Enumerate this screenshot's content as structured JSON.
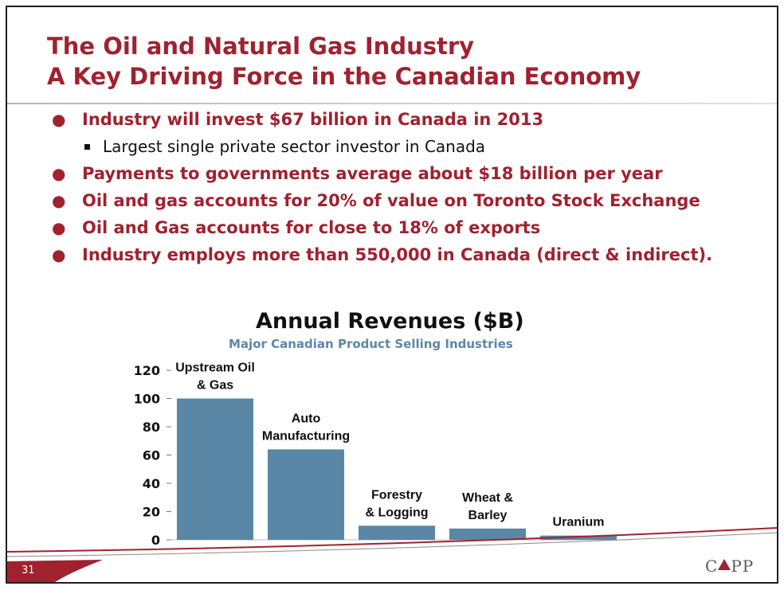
{
  "slide": {
    "title_line1": "The Oil and Natural Gas Industry",
    "title_line2": "A Key Driving Force in the Canadian Economy",
    "bullets": [
      {
        "level": 1,
        "text": "Industry will invest $67 billion in Canada in 2013"
      },
      {
        "level": 2,
        "text": "Largest single private sector investor in Canada"
      },
      {
        "level": 1,
        "text": "Payments to governments average about $18 billion per year"
      },
      {
        "level": 1,
        "text": "Oil and gas accounts for 20% of value on Toronto Stock Exchange"
      },
      {
        "level": 1,
        "text": "Oil and Gas accounts for close to 18% of exports"
      },
      {
        "level": 1,
        "text": "Industry employs more than 550,000 in Canada (direct & indirect)."
      }
    ],
    "page_number": "31",
    "logo_text_left": "C",
    "logo_text_right": "PP",
    "colors": {
      "title": "#a0222f",
      "bar": "#5b87a6",
      "subtitle": "#5b87a6"
    }
  },
  "chart_data": {
    "type": "bar",
    "title": "Annual Revenues ($B)",
    "subtitle": "Major Canadian Product Selling Industries",
    "categories": [
      [
        "Upstream Oil",
        "& Gas"
      ],
      [
        "Auto",
        "Manufacturing"
      ],
      [
        "Forestry",
        "& Logging"
      ],
      [
        "Wheat &",
        "Barley"
      ],
      [
        "Uranium"
      ]
    ],
    "values": [
      100,
      64,
      10,
      8,
      3
    ],
    "ylim": [
      0,
      120
    ],
    "yticks": [
      0,
      20,
      40,
      60,
      80,
      100,
      120
    ],
    "grid": false,
    "bar_color": "#5b87a6"
  }
}
